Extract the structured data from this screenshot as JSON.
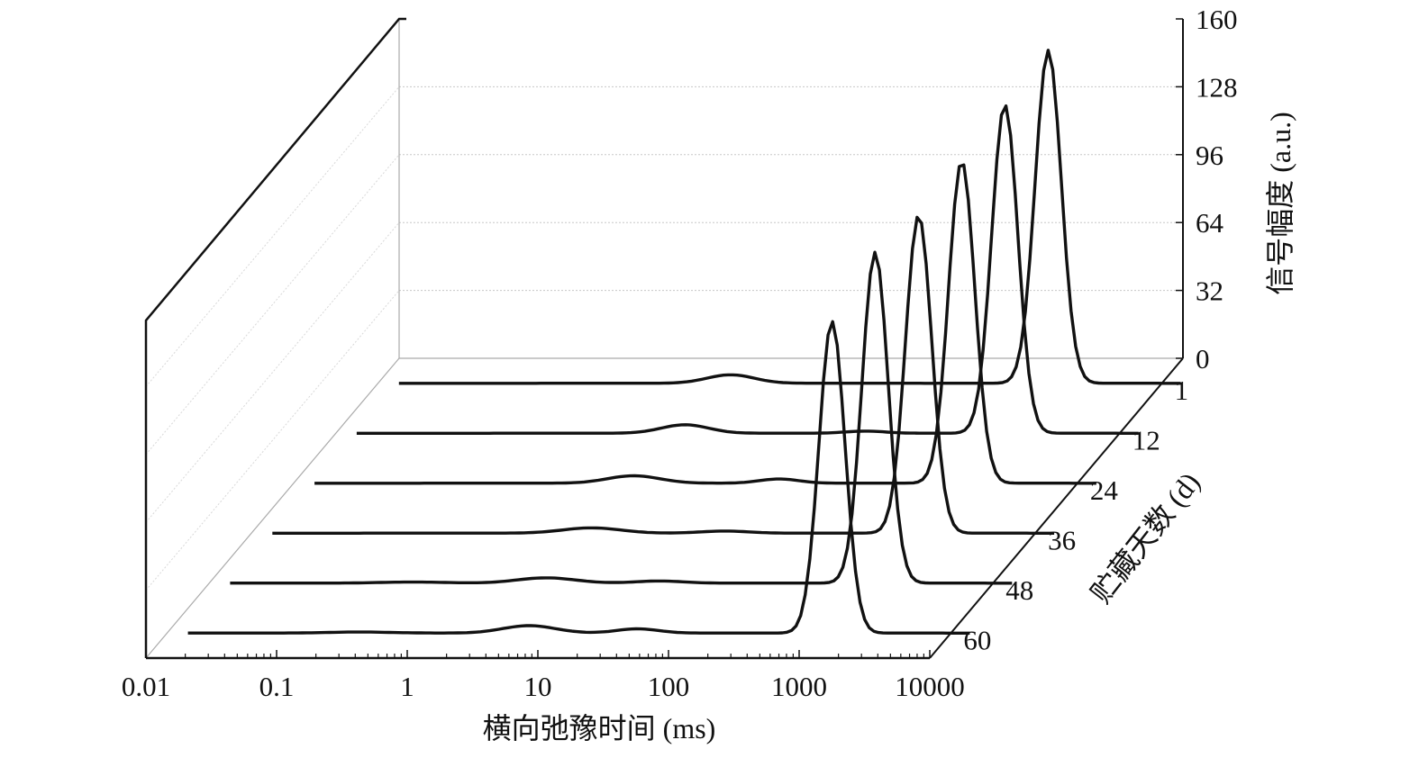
{
  "chart_data": {
    "type": "line",
    "subtype": "3d-waterfall",
    "title": "",
    "xlabel": "横向弛豫时间 (ms)",
    "ylabel": "信号幅度 (a.u.)",
    "zlabel": "贮藏天数 (d)",
    "xscale": "log",
    "xlim": [
      0.01,
      10000
    ],
    "ylim": [
      0,
      160
    ],
    "x_ticks": [
      "0.01",
      "0.1",
      "1",
      "10",
      "100",
      "1000",
      "10000"
    ],
    "y_ticks": [
      "0",
      "32",
      "64",
      "96",
      "128",
      "160"
    ],
    "z_ticks": [
      "1",
      "12",
      "24",
      "36",
      "48",
      "60"
    ],
    "grid": true,
    "series_model": "sum of Gaussian peaks in log10(T2); peak center in ms, amplitude in a.u., width as sigma in decades",
    "series": [
      {
        "name": "1",
        "peaks": [
          {
            "center_ms": 5.0,
            "amp": 4,
            "sigma": 0.18
          },
          {
            "center_ms": 1350,
            "amp": 157,
            "sigma": 0.1
          }
        ]
      },
      {
        "name": "12",
        "peaks": [
          {
            "center_ms": 4.7,
            "amp": 4,
            "sigma": 0.18
          },
          {
            "center_ms": 113,
            "amp": 1,
            "sigma": 0.15
          },
          {
            "center_ms": 1320,
            "amp": 155,
            "sigma": 0.1
          }
        ]
      },
      {
        "name": "24",
        "peaks": [
          {
            "center_ms": 4.0,
            "amp": 3.5,
            "sigma": 0.2
          },
          {
            "center_ms": 52,
            "amp": 2,
            "sigma": 0.15
          },
          {
            "center_ms": 1300,
            "amp": 152,
            "sigma": 0.1
          }
        ]
      },
      {
        "name": "36",
        "peaks": [
          {
            "center_ms": 4.0,
            "amp": 2.5,
            "sigma": 0.22
          },
          {
            "center_ms": 42,
            "amp": 1,
            "sigma": 0.18
          },
          {
            "center_ms": 1280,
            "amp": 150,
            "sigma": 0.1
          }
        ]
      },
      {
        "name": "48",
        "peaks": [
          {
            "center_ms": 0.36,
            "amp": 0.5,
            "sigma": 0.25
          },
          {
            "center_ms": 3.8,
            "amp": 2.5,
            "sigma": 0.22
          },
          {
            "center_ms": 28,
            "amp": 1,
            "sigma": 0.18
          },
          {
            "center_ms": 1250,
            "amp": 156,
            "sigma": 0.1
          }
        ]
      },
      {
        "name": "60",
        "peaks": [
          {
            "center_ms": 0.3,
            "amp": 0.5,
            "sigma": 0.25
          },
          {
            "center_ms": 5.9,
            "amp": 3.5,
            "sigma": 0.2
          },
          {
            "center_ms": 40,
            "amp": 2,
            "sigma": 0.16
          },
          {
            "center_ms": 1230,
            "amp": 147,
            "sigma": 0.1
          }
        ]
      }
    ]
  }
}
